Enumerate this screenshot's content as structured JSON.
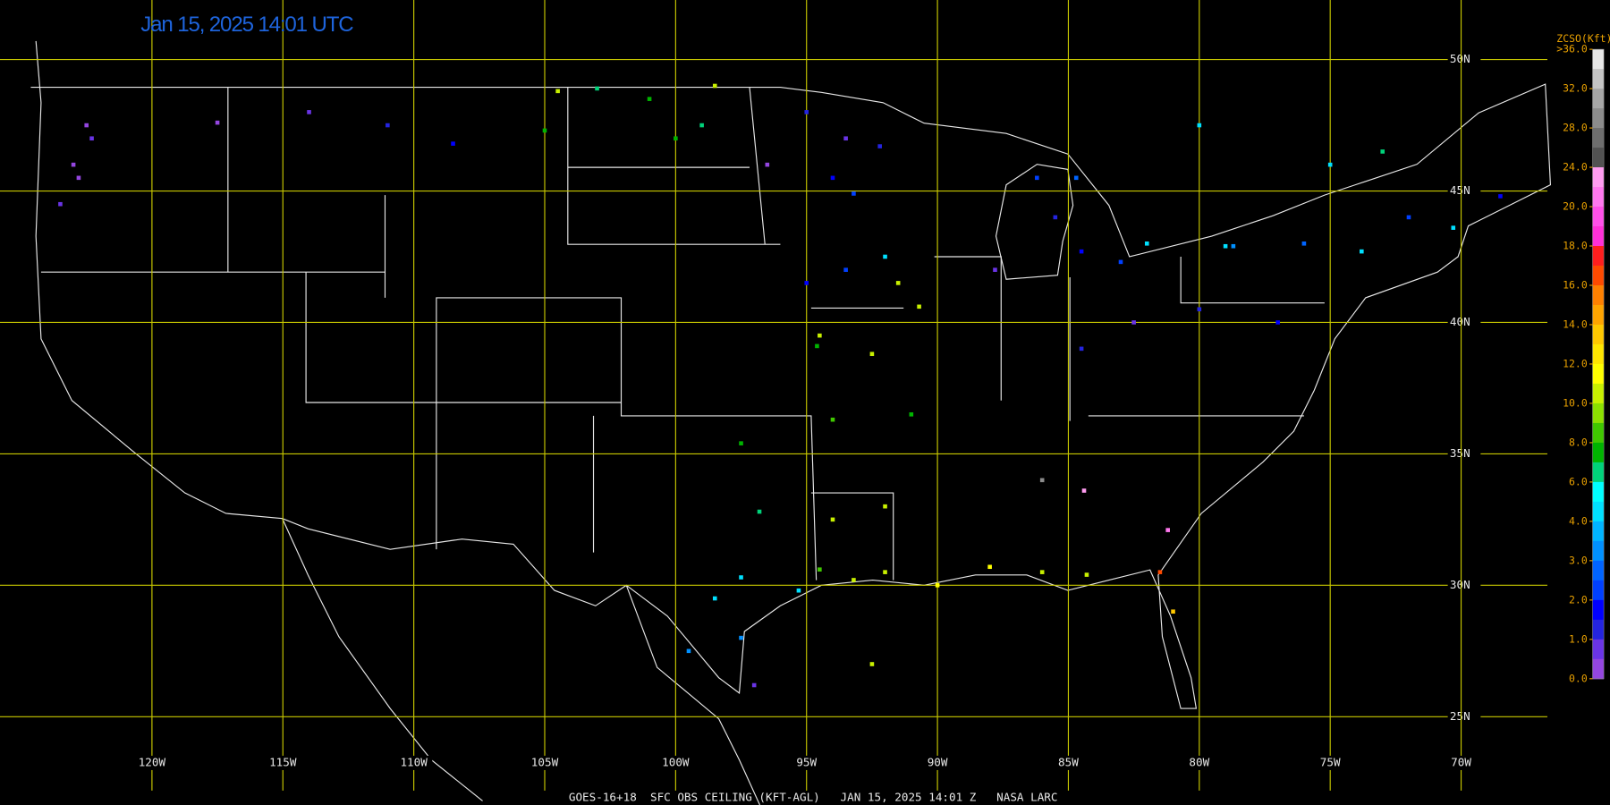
{
  "title": "Jan 15, 2025 14:01 UTC",
  "footer": "GOES-16+18  SFC OBS CEILING (KFT-AGL)   JAN 15, 2025 14:01 Z   NASA LARC",
  "grid": {
    "color": "#c8c800",
    "lat": [
      {
        "value": 50,
        "label": "50N"
      },
      {
        "value": 45,
        "label": "45N"
      },
      {
        "value": 40,
        "label": "40N"
      },
      {
        "value": 35,
        "label": "35N"
      },
      {
        "value": 30,
        "label": "30N"
      },
      {
        "value": 25,
        "label": "25N"
      }
    ],
    "lon": [
      {
        "value": -120,
        "label": "120W"
      },
      {
        "value": -115,
        "label": "115W"
      },
      {
        "value": -110,
        "label": "110W"
      },
      {
        "value": -105,
        "label": "105W"
      },
      {
        "value": -100,
        "label": "100W"
      },
      {
        "value": -95,
        "label": "95W"
      },
      {
        "value": -90,
        "label": "90W"
      },
      {
        "value": -85,
        "label": "85W"
      },
      {
        "value": -80,
        "label": "80W"
      },
      {
        "value": -75,
        "label": "75W"
      },
      {
        "value": -70,
        "label": "70W"
      }
    ]
  },
  "legend": {
    "title": "ZCSO(Kft)",
    "levels": [
      {
        "value": 36,
        "label": ">36.0"
      },
      {
        "value": 32,
        "label": "32.0"
      },
      {
        "value": 28,
        "label": "28.0"
      },
      {
        "value": 24,
        "label": "24.0"
      },
      {
        "value": 20,
        "label": "20.0"
      },
      {
        "value": 18,
        "label": "18.0"
      },
      {
        "value": 16,
        "label": "16.0"
      },
      {
        "value": 14,
        "label": "14.0"
      },
      {
        "value": 12,
        "label": "12.0"
      },
      {
        "value": 10,
        "label": "10.0"
      },
      {
        "value": 8,
        "label": "8.0"
      },
      {
        "value": 6,
        "label": "6.0"
      },
      {
        "value": 4,
        "label": "4.0"
      },
      {
        "value": 3,
        "label": "3.0"
      },
      {
        "value": 2,
        "label": "2.0"
      },
      {
        "value": 1,
        "label": "1.0"
      },
      {
        "value": 0,
        "label": "0.0"
      }
    ],
    "colors": [
      "#e6e6e6",
      "#c4c4c4",
      "#a6a6a6",
      "#8c8c8c",
      "#6e6e6e",
      "#525252",
      "#ff9cf0",
      "#ff78ee",
      "#ff50e8",
      "#ff30d8",
      "#ff1e1e",
      "#ff4a00",
      "#ff8000",
      "#ffa400",
      "#ffc800",
      "#ffe600",
      "#ffff00",
      "#c8f000",
      "#8ce000",
      "#40c800",
      "#00b400",
      "#00d27a",
      "#00ffff",
      "#00e0ff",
      "#00b4ff",
      "#0090ff",
      "#0064ff",
      "#0040ff",
      "#0000ff",
      "#2424e0",
      "#6a34e6",
      "#9446e0"
    ]
  },
  "stations": [
    {
      "lon": -122.5,
      "lat": 47.5,
      "value": 0.5
    },
    {
      "lon": -123.0,
      "lat": 46.0,
      "value": 0.4
    },
    {
      "lon": -123.5,
      "lat": 44.5,
      "value": 0.6
    },
    {
      "lon": -122.8,
      "lat": 45.5,
      "value": 0.5
    },
    {
      "lon": -122.3,
      "lat": 47.0,
      "value": 0.7
    },
    {
      "lon": -117.5,
      "lat": 47.6,
      "value": 0.5
    },
    {
      "lon": -114.0,
      "lat": 48.0,
      "value": 0.6
    },
    {
      "lon": -111.0,
      "lat": 47.5,
      "value": 1.5
    },
    {
      "lon": -108.5,
      "lat": 46.8,
      "value": 1.6
    },
    {
      "lon": -104.5,
      "lat": 48.8,
      "value": 10.5
    },
    {
      "lon": -103.0,
      "lat": 48.9,
      "value": 7.0
    },
    {
      "lon": -101.0,
      "lat": 48.5,
      "value": 7.2
    },
    {
      "lon": -98.5,
      "lat": 49.0,
      "value": 11.0
    },
    {
      "lon": -99.0,
      "lat": 47.5,
      "value": 7.0
    },
    {
      "lon": -100.0,
      "lat": 47.0,
      "value": 7.5
    },
    {
      "lon": -105.0,
      "lat": 47.3,
      "value": 7.1
    },
    {
      "lon": -95.0,
      "lat": 48.0,
      "value": 1.5
    },
    {
      "lon": -93.5,
      "lat": 47.0,
      "value": 0.8
    },
    {
      "lon": -94.0,
      "lat": 45.5,
      "value": 2.0
    },
    {
      "lon": -93.2,
      "lat": 44.9,
      "value": 2.5
    },
    {
      "lon": -96.5,
      "lat": 46.0,
      "value": 0.5
    },
    {
      "lon": -92.2,
      "lat": 46.7,
      "value": 1.2
    },
    {
      "lon": -93.5,
      "lat": 42.0,
      "value": 2.5
    },
    {
      "lon": -91.5,
      "lat": 41.5,
      "value": 10.5
    },
    {
      "lon": -90.7,
      "lat": 40.6,
      "value": 11.0
    },
    {
      "lon": -95.0,
      "lat": 41.5,
      "value": 1.8
    },
    {
      "lon": -92.0,
      "lat": 42.5,
      "value": 4.5
    },
    {
      "lon": -94.5,
      "lat": 39.5,
      "value": 11.0
    },
    {
      "lon": -94.6,
      "lat": 39.1,
      "value": 8.0
    },
    {
      "lon": -92.5,
      "lat": 38.8,
      "value": 11.0
    },
    {
      "lon": -98.5,
      "lat": 29.5,
      "value": 5.0
    },
    {
      "lon": -97.5,
      "lat": 30.3,
      "value": 5.0
    },
    {
      "lon": -96.8,
      "lat": 32.8,
      "value": 7.0
    },
    {
      "lon": -97.5,
      "lat": 28.0,
      "value": 3.5
    },
    {
      "lon": -97.0,
      "lat": 26.2,
      "value": 0.6
    },
    {
      "lon": -99.5,
      "lat": 27.5,
      "value": 3.5
    },
    {
      "lon": -95.3,
      "lat": 29.8,
      "value": 5.0
    },
    {
      "lon": -94.5,
      "lat": 30.6,
      "value": 9.0
    },
    {
      "lon": -93.2,
      "lat": 30.2,
      "value": 11.0
    },
    {
      "lon": -92.0,
      "lat": 30.5,
      "value": 11.0
    },
    {
      "lon": -90.0,
      "lat": 30.0,
      "value": 12.0
    },
    {
      "lon": -88.0,
      "lat": 30.7,
      "value": 12.0
    },
    {
      "lon": -86.0,
      "lat": 30.5,
      "value": 11.0
    },
    {
      "lon": -84.3,
      "lat": 30.4,
      "value": 11.0
    },
    {
      "lon": -92.0,
      "lat": 33.0,
      "value": 11.0
    },
    {
      "lon": -94.0,
      "lat": 32.5,
      "value": 11.0
    },
    {
      "lon": -97.5,
      "lat": 35.4,
      "value": 8.0
    },
    {
      "lon": -94.0,
      "lat": 36.3,
      "value": 8.5
    },
    {
      "lon": -91.0,
      "lat": 36.5,
      "value": 8.0
    },
    {
      "lon": -92.5,
      "lat": 27.0,
      "value": 11.0
    },
    {
      "lon": -84.4,
      "lat": 33.6,
      "value": 24.0
    },
    {
      "lon": -81.2,
      "lat": 32.1,
      "value": 22.0
    },
    {
      "lon": -81.5,
      "lat": 30.5,
      "value": 17.0
    },
    {
      "lon": -81.0,
      "lat": 29.0,
      "value": 14.0
    },
    {
      "lon": -86.0,
      "lat": 34.0,
      "value": 29.0
    },
    {
      "lon": -85.5,
      "lat": 44.0,
      "value": 1.5
    },
    {
      "lon": -84.5,
      "lat": 42.7,
      "value": 2.0
    },
    {
      "lon": -83.0,
      "lat": 42.3,
      "value": 2.2
    },
    {
      "lon": -87.8,
      "lat": 42.0,
      "value": 1.0
    },
    {
      "lon": -86.2,
      "lat": 45.5,
      "value": 2.5
    },
    {
      "lon": -84.7,
      "lat": 45.5,
      "value": 3.0
    },
    {
      "lon": -82.0,
      "lat": 43.0,
      "value": 4.5
    },
    {
      "lon": -79.0,
      "lat": 42.9,
      "value": 5.0
    },
    {
      "lon": -76.0,
      "lat": 43.0,
      "value": 3.0
    },
    {
      "lon": -78.7,
      "lat": 42.9,
      "value": 3.5
    },
    {
      "lon": -73.8,
      "lat": 42.7,
      "value": 4.5
    },
    {
      "lon": -72.0,
      "lat": 44.0,
      "value": 2.5
    },
    {
      "lon": -70.3,
      "lat": 43.6,
      "value": 5.0
    },
    {
      "lon": -68.5,
      "lat": 44.8,
      "value": 2.0
    },
    {
      "lon": -80.0,
      "lat": 40.5,
      "value": 1.5
    },
    {
      "lon": -82.5,
      "lat": 40.0,
      "value": 0.7
    },
    {
      "lon": -77.0,
      "lat": 40.0,
      "value": 1.8
    },
    {
      "lon": -84.5,
      "lat": 39.0,
      "value": 1.5
    },
    {
      "lon": -75.0,
      "lat": 46.0,
      "value": 5.0
    },
    {
      "lon": -80.0,
      "lat": 47.5,
      "value": 5.0
    },
    {
      "lon": -73.0,
      "lat": 46.5,
      "value": 6.5
    }
  ]
}
